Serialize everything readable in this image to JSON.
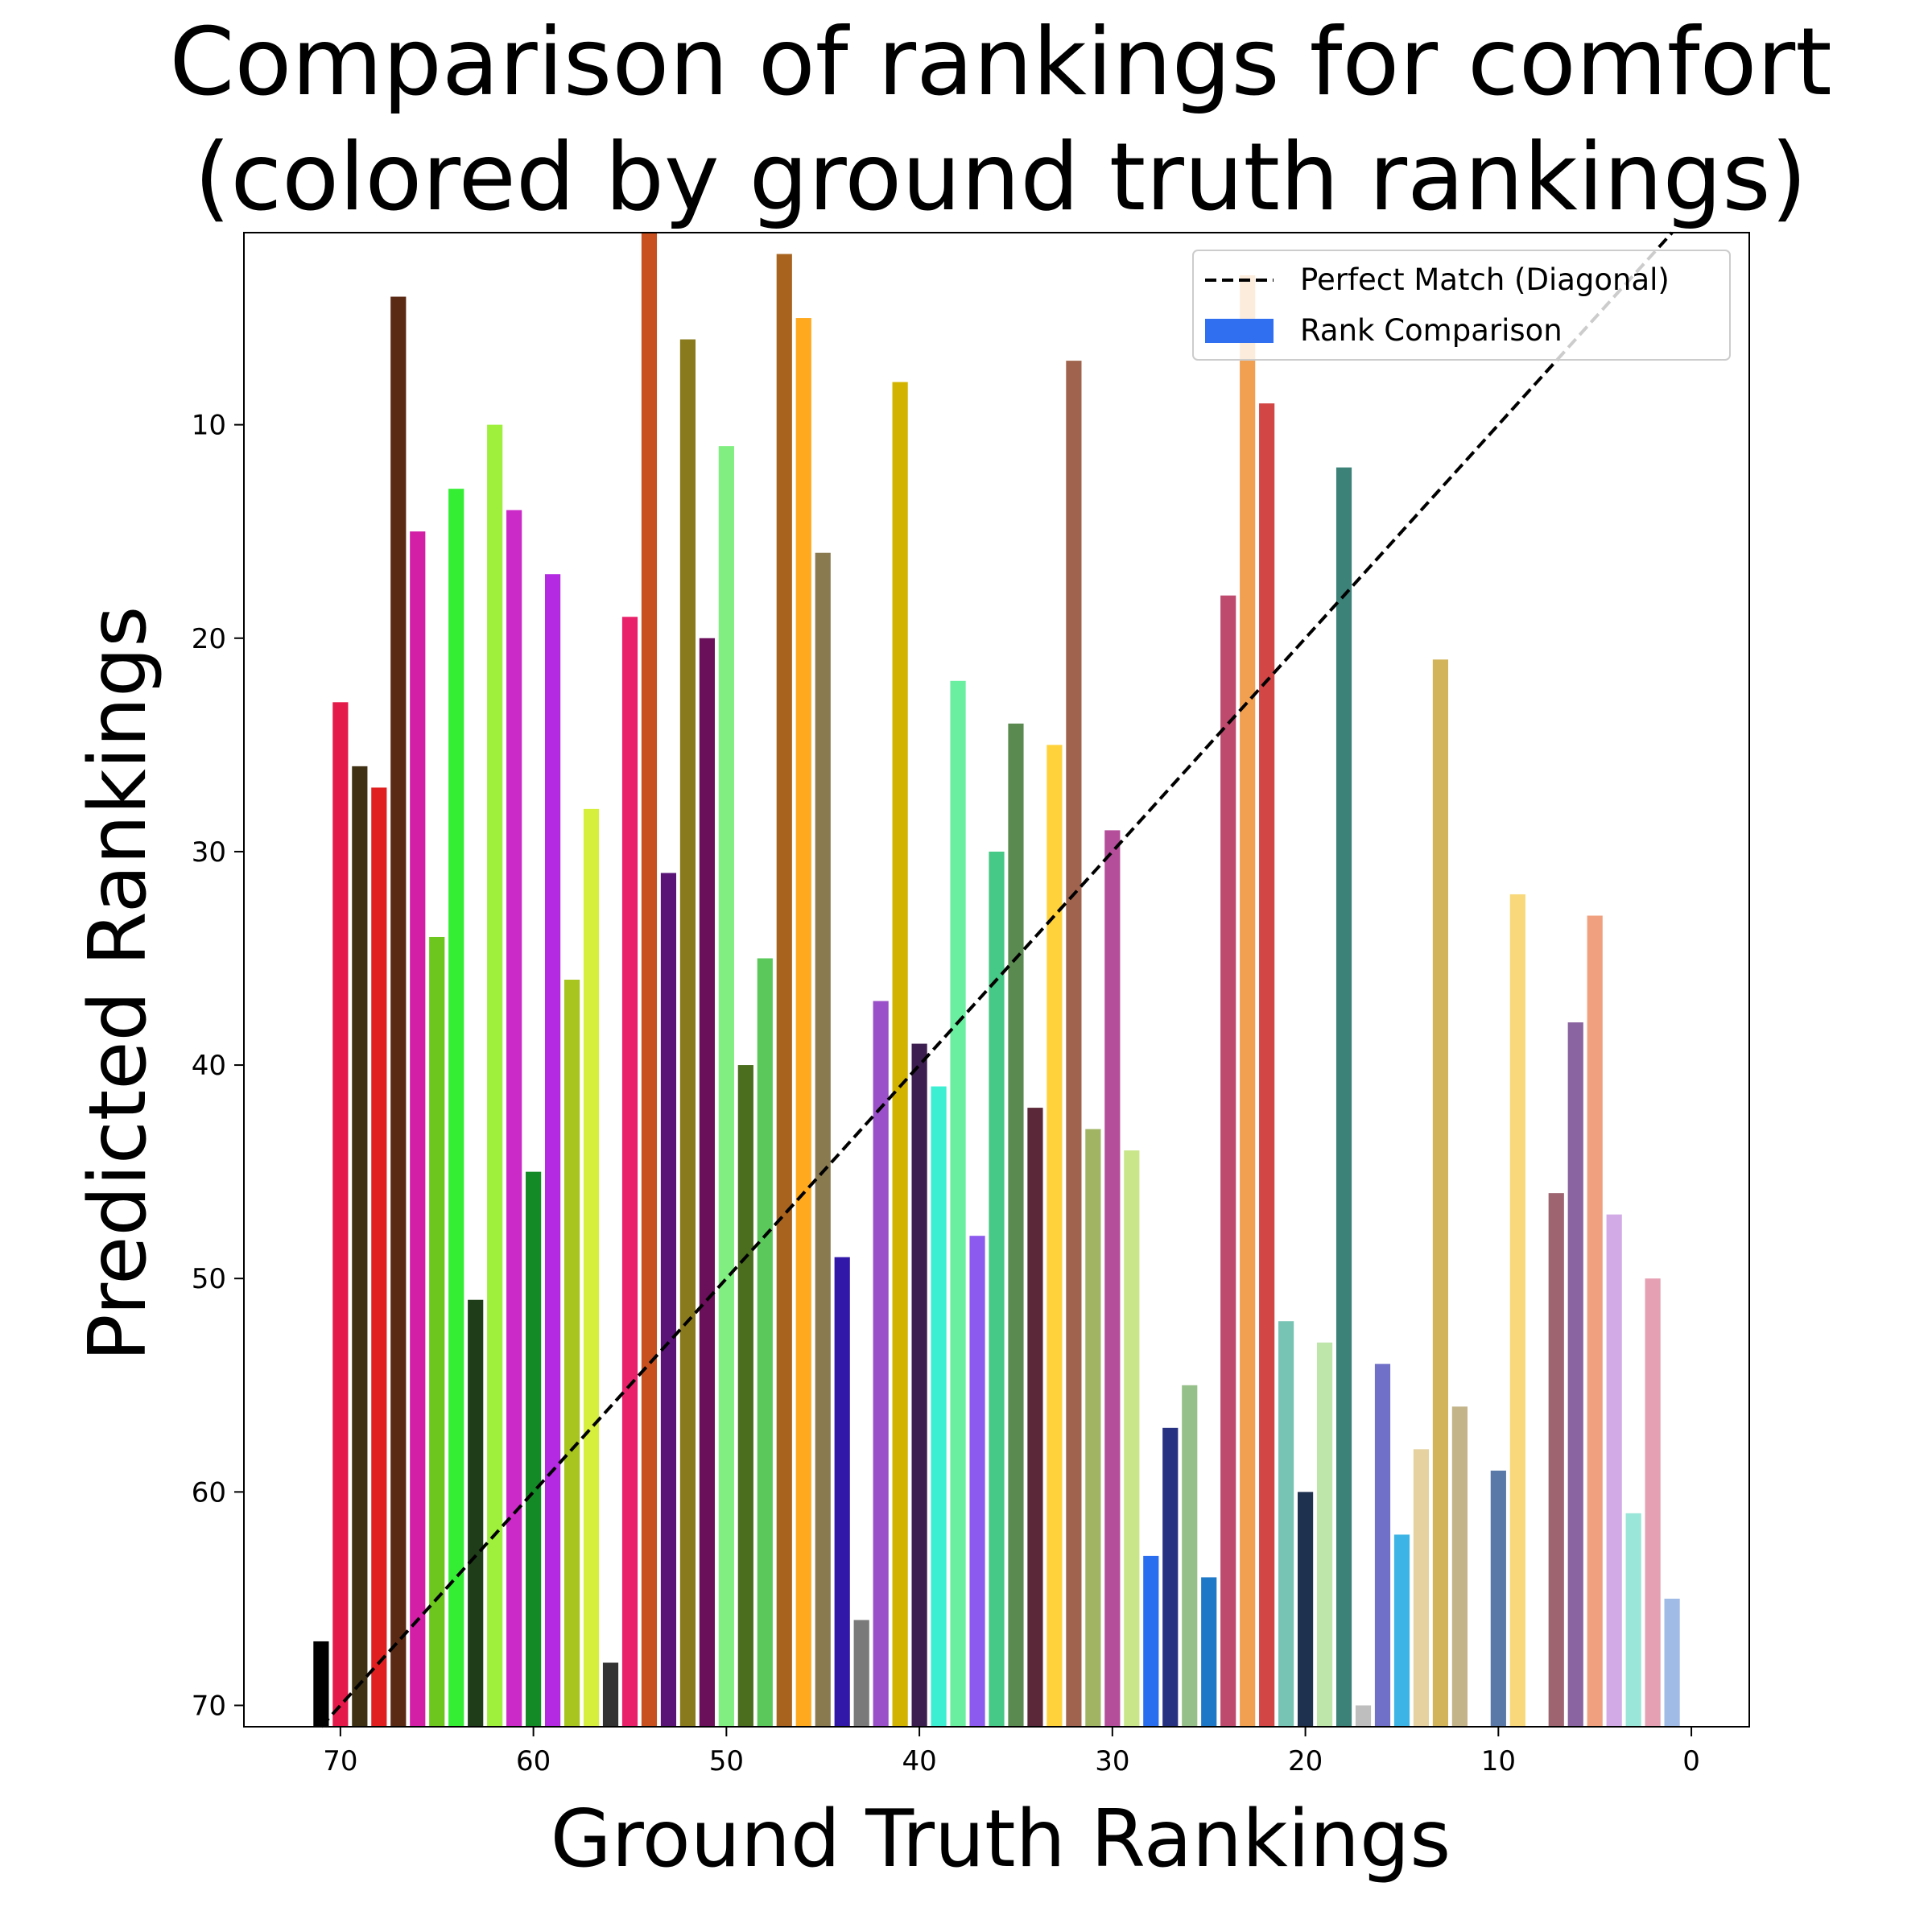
{
  "chart_data": {
    "type": "bar",
    "title_lines": [
      "Comparison of rankings for comfort",
      "(colored by ground truth rankings)"
    ],
    "xlabel": "Ground Truth Rankings",
    "ylabel": "Predicted Rankings",
    "x_inverted": true,
    "y_inverted": true,
    "xlim": [
      75,
      -3
    ],
    "ylim": [
      71,
      1
    ],
    "x_ticks": [
      70,
      60,
      50,
      40,
      30,
      20,
      10,
      0
    ],
    "y_ticks": [
      10,
      20,
      30,
      40,
      50,
      60,
      70
    ],
    "grid": false,
    "legend": {
      "placement": "top-right",
      "entries": [
        {
          "label": "Perfect Match (Diagonal)",
          "style": "dashed-line",
          "color": "#000000"
        },
        {
          "label": "Rank Comparison",
          "style": "patch",
          "color": "#2f6ff0"
        }
      ]
    },
    "diagonal": {
      "label": "Perfect Match (Diagonal)",
      "from": [
        71,
        71
      ],
      "to": [
        0,
        0
      ]
    },
    "series": [
      {
        "name": "Rank Comparison",
        "bars": [
          {
            "x": 71,
            "y": 67,
            "color": "#000000"
          },
          {
            "x": 70,
            "y": 23,
            "color": "#e41a4a"
          },
          {
            "x": 69,
            "y": 26,
            "color": "#3f3113"
          },
          {
            "x": 68,
            "y": 27,
            "color": "#e02020"
          },
          {
            "x": 67,
            "y": 4,
            "color": "#5a2a14"
          },
          {
            "x": 66,
            "y": 15,
            "color": "#d21fa6"
          },
          {
            "x": 65,
            "y": 34,
            "color": "#6cc61e"
          },
          {
            "x": 64,
            "y": 13,
            "color": "#33ee33"
          },
          {
            "x": 63,
            "y": 51,
            "color": "#1f3d18"
          },
          {
            "x": 62,
            "y": 10,
            "color": "#9ef03c"
          },
          {
            "x": 61,
            "y": 14,
            "color": "#cc2ac8"
          },
          {
            "x": 60,
            "y": 45,
            "color": "#138a26"
          },
          {
            "x": 59,
            "y": 17,
            "color": "#b32ae2"
          },
          {
            "x": 58,
            "y": 36,
            "color": "#a8c41e"
          },
          {
            "x": 57,
            "y": 28,
            "color": "#d6ee3c"
          },
          {
            "x": 56,
            "y": 68,
            "color": "#333333"
          },
          {
            "x": 55,
            "y": 19,
            "color": "#e8216a"
          },
          {
            "x": 54,
            "y": 1,
            "color": "#c8501e"
          },
          {
            "x": 53,
            "y": 31,
            "color": "#5a1478"
          },
          {
            "x": 52,
            "y": 6,
            "color": "#8a7a1e"
          },
          {
            "x": 51,
            "y": 20,
            "color": "#6a0f5a"
          },
          {
            "x": 50,
            "y": 11,
            "color": "#80ee80"
          },
          {
            "x": 49,
            "y": 40,
            "color": "#4a6e1e"
          },
          {
            "x": 48,
            "y": 35,
            "color": "#5ac85a"
          },
          {
            "x": 47,
            "y": 2,
            "color": "#a8641e"
          },
          {
            "x": 46,
            "y": 5,
            "color": "#ffaa1e"
          },
          {
            "x": 45,
            "y": 16,
            "color": "#8a7a50"
          },
          {
            "x": 44,
            "y": 49,
            "color": "#3218a8"
          },
          {
            "x": 43,
            "y": 66,
            "color": "#7a7a7a"
          },
          {
            "x": 42,
            "y": 37,
            "color": "#9a50c8"
          },
          {
            "x": 41,
            "y": 8,
            "color": "#d2b400"
          },
          {
            "x": 40,
            "y": 39,
            "color": "#3c1e50"
          },
          {
            "x": 39,
            "y": 41,
            "color": "#3ceed2"
          },
          {
            "x": 38,
            "y": 22,
            "color": "#6aeea0"
          },
          {
            "x": 37,
            "y": 48,
            "color": "#8c5aee"
          },
          {
            "x": 36,
            "y": 30,
            "color": "#46c886"
          },
          {
            "x": 35,
            "y": 24,
            "color": "#5a8a50"
          },
          {
            "x": 34,
            "y": 42,
            "color": "#5a2838"
          },
          {
            "x": 33,
            "y": 25,
            "color": "#ffd23c"
          },
          {
            "x": 32,
            "y": 7,
            "color": "#a0644e"
          },
          {
            "x": 31,
            "y": 43,
            "color": "#a0b464"
          },
          {
            "x": 30,
            "y": 29,
            "color": "#b44e9a"
          },
          {
            "x": 29,
            "y": 44,
            "color": "#cae68a"
          },
          {
            "x": 28,
            "y": 63,
            "color": "#2a6ef0"
          },
          {
            "x": 27,
            "y": 57,
            "color": "#283282"
          },
          {
            "x": 26,
            "y": 55,
            "color": "#96c08a"
          },
          {
            "x": 25,
            "y": 64,
            "color": "#1e78c8"
          },
          {
            "x": 24,
            "y": 18,
            "color": "#be4a6e"
          },
          {
            "x": 23,
            "y": 3,
            "color": "#f0a050"
          },
          {
            "x": 22,
            "y": 9,
            "color": "#d24646"
          },
          {
            "x": 21,
            "y": 52,
            "color": "#78c4b4"
          },
          {
            "x": 20,
            "y": 60,
            "color": "#1e3250"
          },
          {
            "x": 19,
            "y": 53,
            "color": "#bee6aa"
          },
          {
            "x": 18,
            "y": 12,
            "color": "#3c8278"
          },
          {
            "x": 17,
            "y": 70,
            "color": "#bebebe"
          },
          {
            "x": 16,
            "y": 54,
            "color": "#7070c8"
          },
          {
            "x": 15,
            "y": 62,
            "color": "#3cb4e6"
          },
          {
            "x": 14,
            "y": 58,
            "color": "#e6d2a0"
          },
          {
            "x": 13,
            "y": 21,
            "color": "#d2b45a"
          },
          {
            "x": 12,
            "y": 56,
            "color": "#c4b48a"
          },
          {
            "x": 10,
            "y": 59,
            "color": "#5a78a8"
          },
          {
            "x": 9,
            "y": 32,
            "color": "#f8d87a"
          },
          {
            "x": 7,
            "y": 46,
            "color": "#9e6470"
          },
          {
            "x": 6,
            "y": 38,
            "color": "#8a64a0"
          },
          {
            "x": 5,
            "y": 33,
            "color": "#f0a07e"
          },
          {
            "x": 4,
            "y": 47,
            "color": "#d2aae6"
          },
          {
            "x": 3,
            "y": 61,
            "color": "#9ae6d8"
          },
          {
            "x": 2,
            "y": 50,
            "color": "#e6a0b4"
          },
          {
            "x": 1,
            "y": 65,
            "color": "#a0bce6"
          }
        ]
      }
    ]
  }
}
